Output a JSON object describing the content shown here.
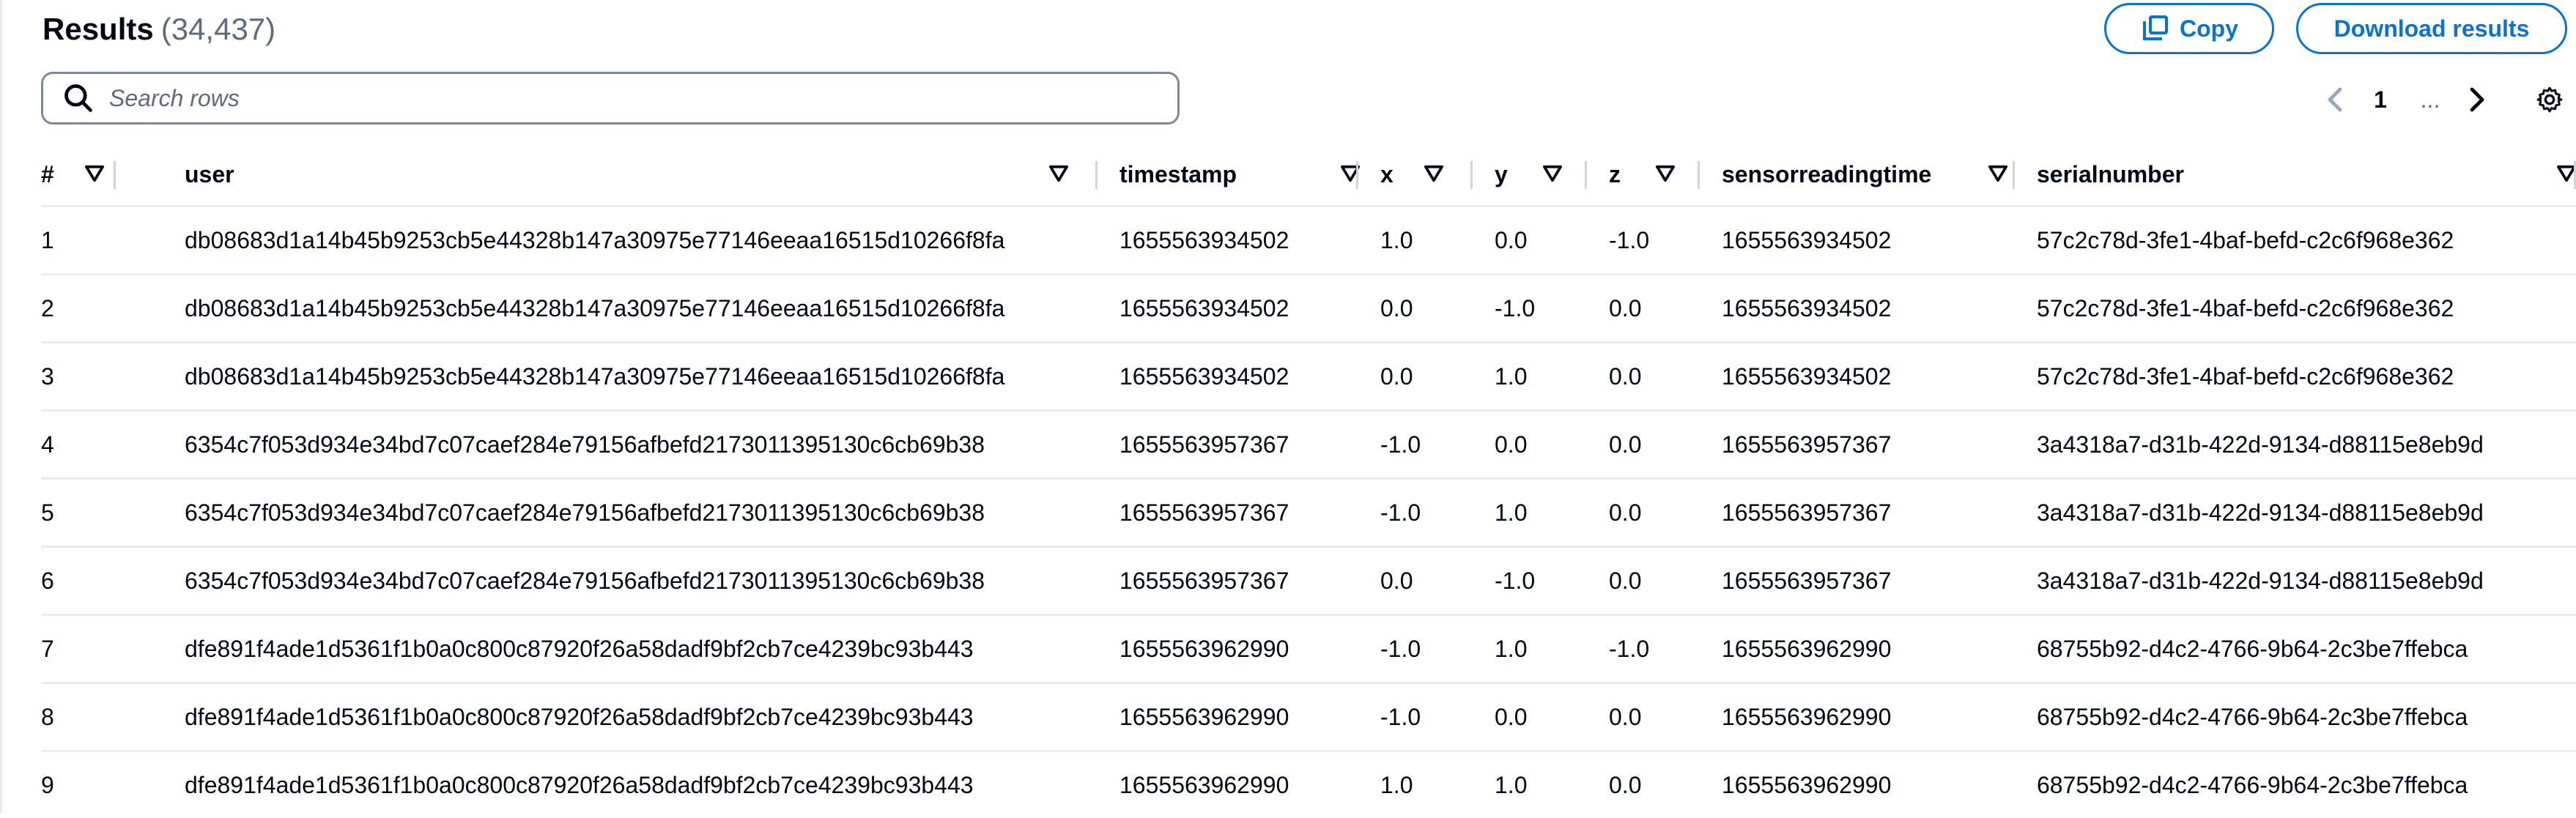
{
  "header": {
    "title": "Results",
    "count": "(34,437)"
  },
  "buttons": {
    "copy_label": "Copy",
    "download_label": "Download results"
  },
  "search": {
    "placeholder": "Search rows"
  },
  "pagination": {
    "current_page": "1",
    "ellipsis": "..."
  },
  "icons": {
    "search": "search-icon",
    "copy": "copy-icon",
    "prev": "chevron-left-icon",
    "next": "chevron-right-icon",
    "settings": "gear-icon",
    "sort": "sort-caret-icon"
  },
  "colors": {
    "accent": "#0972d3",
    "text": "#000716",
    "muted": "#5f6b7a",
    "border": "#e9ebed"
  },
  "table": {
    "columns": [
      "#",
      "user",
      "timestamp",
      "x",
      "y",
      "z",
      "sensorreadingtime",
      "serialnumber"
    ],
    "rows": [
      [
        "1",
        "db08683d1a14b45b9253cb5e44328b147a30975e77146eeaa16515d10266f8fa",
        "1655563934502",
        "1.0",
        "0.0",
        "-1.0",
        "1655563934502",
        "57c2c78d-3fe1-4baf-befd-c2c6f968e362"
      ],
      [
        "2",
        "db08683d1a14b45b9253cb5e44328b147a30975e77146eeaa16515d10266f8fa",
        "1655563934502",
        "0.0",
        "-1.0",
        "0.0",
        "1655563934502",
        "57c2c78d-3fe1-4baf-befd-c2c6f968e362"
      ],
      [
        "3",
        "db08683d1a14b45b9253cb5e44328b147a30975e77146eeaa16515d10266f8fa",
        "1655563934502",
        "0.0",
        "1.0",
        "0.0",
        "1655563934502",
        "57c2c78d-3fe1-4baf-befd-c2c6f968e362"
      ],
      [
        "4",
        "6354c7f053d934e34bd7c07caef284e79156afbefd2173011395130c6cb69b38",
        "1655563957367",
        "-1.0",
        "0.0",
        "0.0",
        "1655563957367",
        "3a4318a7-d31b-422d-9134-d88115e8eb9d"
      ],
      [
        "5",
        "6354c7f053d934e34bd7c07caef284e79156afbefd2173011395130c6cb69b38",
        "1655563957367",
        "-1.0",
        "1.0",
        "0.0",
        "1655563957367",
        "3a4318a7-d31b-422d-9134-d88115e8eb9d"
      ],
      [
        "6",
        "6354c7f053d934e34bd7c07caef284e79156afbefd2173011395130c6cb69b38",
        "1655563957367",
        "0.0",
        "-1.0",
        "0.0",
        "1655563957367",
        "3a4318a7-d31b-422d-9134-d88115e8eb9d"
      ],
      [
        "7",
        "dfe891f4ade1d5361f1b0a0c800c87920f26a58dadf9bf2cb7ce4239bc93b443",
        "1655563962990",
        "-1.0",
        "1.0",
        "-1.0",
        "1655563962990",
        "68755b92-d4c2-4766-9b64-2c3be7ffebca"
      ],
      [
        "8",
        "dfe891f4ade1d5361f1b0a0c800c87920f26a58dadf9bf2cb7ce4239bc93b443",
        "1655563962990",
        "-1.0",
        "0.0",
        "0.0",
        "1655563962990",
        "68755b92-d4c2-4766-9b64-2c3be7ffebca"
      ],
      [
        "9",
        "dfe891f4ade1d5361f1b0a0c800c87920f26a58dadf9bf2cb7ce4239bc93b443",
        "1655563962990",
        "1.0",
        "1.0",
        "0.0",
        "1655563962990",
        "68755b92-d4c2-4766-9b64-2c3be7ffebca"
      ]
    ]
  }
}
